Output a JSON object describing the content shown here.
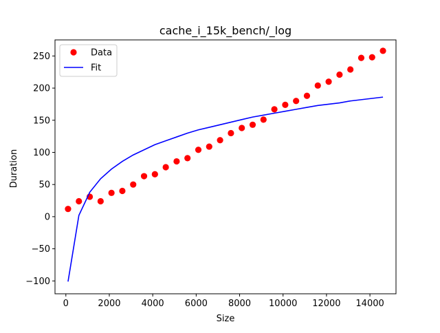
{
  "chart_data": {
    "type": "scatter",
    "title": "cache_i_15k_bench/_log",
    "xlabel": "Size",
    "ylabel": "Duration",
    "xlim": [
      -500,
      15200
    ],
    "ylim": [
      -120,
      275
    ],
    "xticks": [
      0,
      2000,
      4000,
      6000,
      8000,
      10000,
      12000,
      14000
    ],
    "xtick_labels": [
      "0",
      "2000",
      "4000",
      "6000",
      "8000",
      "10000",
      "12000",
      "14000"
    ],
    "yticks": [
      -100,
      -50,
      0,
      50,
      100,
      150,
      200,
      250
    ],
    "ytick_labels": [
      "−100",
      "−50",
      "0",
      "50",
      "100",
      "150",
      "200",
      "250"
    ],
    "grid": false,
    "legend_position": "upper-left",
    "series": [
      {
        "name": "Data",
        "kind": "scatter",
        "color": "#ff0000",
        "x": [
          100,
          600,
          1100,
          1600,
          2100,
          2600,
          3100,
          3600,
          4100,
          4600,
          5100,
          5600,
          6100,
          6600,
          7100,
          7600,
          8100,
          8600,
          9100,
          9600,
          10100,
          10600,
          11100,
          11600,
          12100,
          12600,
          13100,
          13600,
          14100,
          14600
        ],
        "y": [
          12,
          24,
          31,
          24,
          37,
          40,
          50,
          63,
          66,
          77,
          86,
          91,
          104,
          109,
          119,
          130,
          138,
          143,
          151,
          167,
          174,
          180,
          188,
          204,
          210,
          221,
          229,
          247,
          248,
          258
        ]
      },
      {
        "name": "Fit",
        "kind": "line",
        "color": "#0000ff",
        "x": [
          100,
          600,
          1100,
          1600,
          2100,
          2600,
          3100,
          3600,
          4100,
          4600,
          5100,
          5600,
          6100,
          6600,
          7100,
          7600,
          8100,
          8600,
          9100,
          9600,
          10100,
          10600,
          11100,
          11600,
          12100,
          12600,
          13100,
          13600,
          14100,
          14600
        ],
        "y": [
          -101,
          2,
          38,
          59,
          74,
          86,
          96,
          104,
          112,
          118,
          124,
          130,
          135,
          139,
          143,
          147,
          151,
          155,
          158,
          161,
          164,
          167,
          170,
          173,
          175,
          177,
          180,
          182,
          184,
          186
        ]
      }
    ]
  }
}
